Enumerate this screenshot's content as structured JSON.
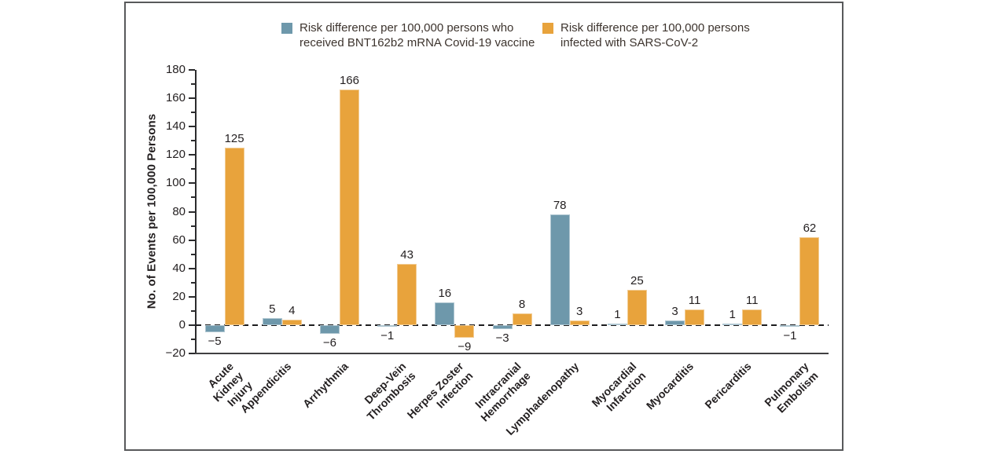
{
  "figure": {
    "background": "#ffffff",
    "frame_border_color": "#58595b",
    "axis_color": "#2b2b2d",
    "text_color": "#231f20"
  },
  "legend": {
    "items": [
      {
        "key": "vaccine",
        "label": "Risk difference per 100,000 persons who\nreceived BNT162b2 mRNA Covid-19 vaccine",
        "color": "#6e98ab"
      },
      {
        "key": "infection",
        "label": "Risk difference per 100,000 persons\ninfected with SARS-CoV-2",
        "color": "#e8a33c"
      }
    ]
  },
  "chart_data": {
    "type": "bar",
    "title": "",
    "xlabel": "",
    "ylabel": "No. of Events per 100,000 Persons",
    "ylim": [
      -20,
      180
    ],
    "ytick_step": 20,
    "yminor_step": 10,
    "grid": false,
    "zero_line": "dashed",
    "legend_position": "top",
    "categories": [
      "Acute Kidney\nInjury",
      "Appendicitis",
      "Arrhythmia",
      "Deep-Vein\nThrombosis",
      "Herpes Zoster\nInfection",
      "Intracranial\nHemorrhage",
      "Lymphadenopathy",
      "Myocardial\nInfarction",
      "Myocarditis",
      "Pericarditis",
      "Pulmonary\nEmbolism"
    ],
    "series": [
      {
        "key": "vaccine",
        "name": "Risk difference per 100,000 persons who received BNT162b2 mRNA Covid-19 vaccine",
        "color": "#6e98ab",
        "values": [
          -5,
          5,
          -6,
          -1,
          16,
          -3,
          78,
          1,
          3,
          1,
          -1
        ]
      },
      {
        "key": "infection",
        "name": "Risk difference per 100,000 persons infected with SARS-CoV-2",
        "color": "#e8a33c",
        "values": [
          125,
          4,
          166,
          43,
          -9,
          8,
          3,
          25,
          11,
          11,
          62
        ]
      }
    ]
  }
}
